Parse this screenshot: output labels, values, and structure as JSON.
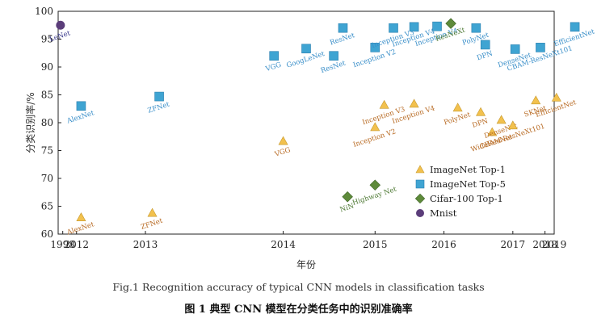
{
  "chart_data": {
    "type": "scatter",
    "title": "",
    "xlabel": "年份",
    "ylabel": "分类识别率/%",
    "ylim": [
      60,
      100
    ],
    "xlim": [
      1997.8,
      2019.4
    ],
    "yticks": [
      60,
      65,
      70,
      75,
      80,
      85,
      90,
      95,
      100
    ],
    "xticks": [
      {
        "value": 1998.0,
        "label": "1998"
      },
      {
        "value": 1998.6,
        "label": "2012"
      },
      {
        "value": 2001.6,
        "label": "2013"
      },
      {
        "value": 2007.6,
        "label": "2014"
      },
      {
        "value": 2011.6,
        "label": "2015"
      },
      {
        "value": 2014.6,
        "label": "2016"
      },
      {
        "value": 2017.6,
        "label": "2017"
      },
      {
        "value": 2019.0,
        "label": "2018"
      },
      {
        "value": 2020.4,
        "label": "2019"
      }
    ],
    "legend": [
      "ImageNet Top-1",
      "ImageNet Top-5",
      "Cifar-100 Top-1",
      "Mnist"
    ],
    "series": [
      {
        "name": "ImageNet Top-1",
        "marker": "triangle",
        "color": "#F2C14E",
        "label_color": "#B86B24",
        "points": [
          {
            "x": 1998.8,
            "y": 63.0,
            "label": "AlexNet"
          },
          {
            "x": 2001.9,
            "y": 63.8,
            "label": "ZFNet"
          },
          {
            "x": 2007.6,
            "y": 76.7,
            "label": "VGG"
          },
          {
            "x": 2011.6,
            "y": 79.2,
            "label": "Inception V2"
          },
          {
            "x": 2012.0,
            "y": 83.2,
            "label": "Inception V3"
          },
          {
            "x": 2013.3,
            "y": 83.4,
            "label": "Inception V4"
          },
          {
            "x": 2015.2,
            "y": 82.7,
            "label": "PolyNet"
          },
          {
            "x": 2016.2,
            "y": 81.9,
            "label": "DPN"
          },
          {
            "x": 2016.7,
            "y": 78.3,
            "label": "WideResNet"
          },
          {
            "x": 2017.1,
            "y": 80.5,
            "label": "DenseNet"
          },
          {
            "x": 2017.6,
            "y": 79.5,
            "label": "CBAM-ResNeXt101"
          },
          {
            "x": 2018.6,
            "y": 84.0,
            "label": "SKNet"
          },
          {
            "x": 2019.5,
            "y": 84.5,
            "label": "EfficientNet"
          }
        ]
      },
      {
        "name": "ImageNet Top-5",
        "marker": "square",
        "color": "#3FA4D2",
        "label_color": "#3A8FC9",
        "points": [
          {
            "x": 1998.8,
            "y": 83.0,
            "label": "AlexNet"
          },
          {
            "x": 2002.2,
            "y": 84.7,
            "label": "ZFNet"
          },
          {
            "x": 2007.2,
            "y": 92.0,
            "label": "VGG"
          },
          {
            "x": 2008.6,
            "y": 93.3,
            "label": "GoogLeNet"
          },
          {
            "x": 2009.8,
            "y": 92.0,
            "label": "ResNet"
          },
          {
            "x": 2010.2,
            "y": 97.0,
            "label": "ResNet"
          },
          {
            "x": 2011.6,
            "y": 93.5,
            "label": "Inception V2"
          },
          {
            "x": 2012.4,
            "y": 97.0,
            "label": "Inception V3"
          },
          {
            "x": 2013.3,
            "y": 97.2,
            "label": "Inception V4"
          },
          {
            "x": 2014.3,
            "y": 97.3,
            "label": "Inception V4"
          },
          {
            "x": 2016.0,
            "y": 97.0,
            "label": "PolyNet"
          },
          {
            "x": 2016.4,
            "y": 94.0,
            "label": "DPN"
          },
          {
            "x": 2017.7,
            "y": 93.2,
            "label": "DenseNet"
          },
          {
            "x": 2018.8,
            "y": 93.5,
            "label": "CBAM-ResNeXt101"
          },
          {
            "x": 2020.3,
            "y": 97.2,
            "label": "EfficientNet"
          }
        ]
      },
      {
        "name": "Cifar-100 Top-1",
        "marker": "diamond",
        "color": "#5E8A3A",
        "label_color": "#4F7A35",
        "points": [
          {
            "x": 2010.4,
            "y": 66.7,
            "label": "NiN"
          },
          {
            "x": 2011.6,
            "y": 68.8,
            "label": "Highway Net"
          },
          {
            "x": 2014.9,
            "y": 97.8,
            "label": "ResNeXt"
          }
        ]
      },
      {
        "name": "Mnist",
        "marker": "circle",
        "color": "#5B3D7A",
        "label_color": "#3A3A8C",
        "points": [
          {
            "x": 1997.9,
            "y": 97.5,
            "label": "LeNet"
          }
        ]
      }
    ]
  },
  "captions": {
    "en": "Fig.1    Recognition accuracy of typical CNN models in classification tasks",
    "zh": "图 1    典型 CNN 模型在分类任务中的识别准确率"
  }
}
